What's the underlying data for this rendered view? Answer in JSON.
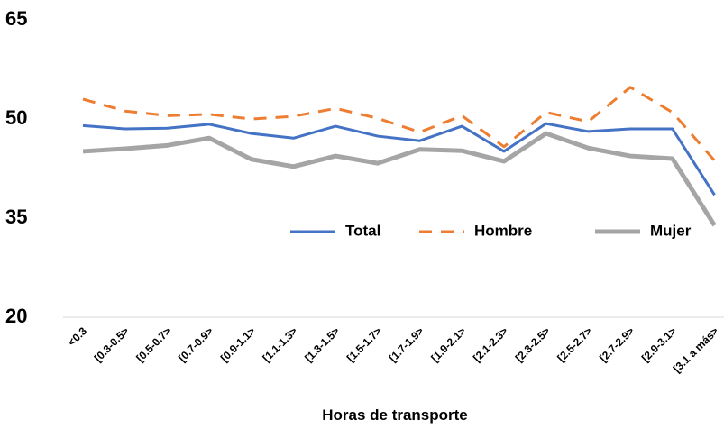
{
  "chart_data": {
    "type": "line",
    "x_label": "Horas de transporte",
    "categories": [
      "<0.3",
      "[0.3-0.5>",
      "[0.5-0.7>",
      "[0.7-0.9>",
      "[0.9-1.1>",
      "[1.1-1.3>",
      "[1.3-1.5>",
      "[1.5-1.7>",
      "[1.7-1.9>",
      "[1.9-2.1>",
      "[2.1-2.3>",
      "[2.3-2.5>",
      "[2.5-2.7>",
      "[2.7-2.9>",
      "[2.9-3.1>",
      "[3.1 a más>"
    ],
    "series": [
      {
        "name": "Total",
        "color": "#4472c4",
        "dash": false,
        "values": [
          49.0,
          48.5,
          48.6,
          49.2,
          47.8,
          47.1,
          48.9,
          47.4,
          46.7,
          48.9,
          45.1,
          49.3,
          48.1,
          48.5,
          48.5,
          38.5
        ]
      },
      {
        "name": "Hombre",
        "color": "#ed7d31",
        "dash": true,
        "values": [
          53.0,
          51.2,
          50.5,
          50.7,
          50.0,
          50.4,
          51.6,
          50.1,
          48.0,
          50.5,
          45.8,
          51.0,
          49.6,
          54.8,
          51.0,
          43.7
        ]
      },
      {
        "name": "Mujer",
        "color": "#a5a5a5",
        "dash": false,
        "values": [
          45.1,
          45.5,
          46.0,
          47.1,
          43.9,
          42.8,
          44.4,
          43.3,
          45.4,
          45.2,
          43.6,
          47.8,
          45.6,
          44.4,
          44.0,
          33.9
        ]
      }
    ],
    "ylim": [
      20,
      65
    ],
    "yticks": [
      20,
      35,
      50,
      65
    ],
    "grid": false
  }
}
